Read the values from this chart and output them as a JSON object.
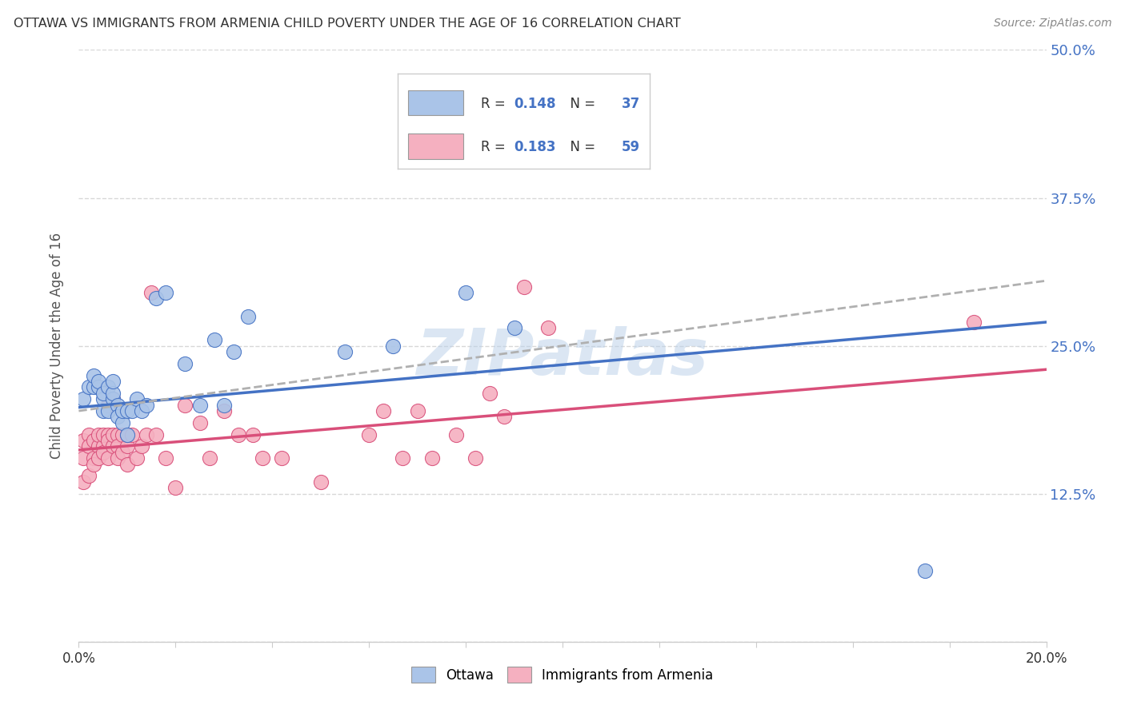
{
  "title": "OTTAWA VS IMMIGRANTS FROM ARMENIA CHILD POVERTY UNDER THE AGE OF 16 CORRELATION CHART",
  "source": "Source: ZipAtlas.com",
  "ylabel": "Child Poverty Under the Age of 16",
  "xlim": [
    0.0,
    0.2
  ],
  "ylim": [
    0.0,
    0.5
  ],
  "ottawa_R": "0.148",
  "ottawa_N": "37",
  "armenia_R": "0.183",
  "armenia_N": "59",
  "ottawa_color": "#aac4e8",
  "armenia_color": "#f5b0c0",
  "ottawa_line_color": "#4472c4",
  "armenia_line_color": "#d94f7a",
  "trendline_color": "#b0b0b0",
  "watermark": "ZIPatlas",
  "background_color": "#ffffff",
  "grid_color": "#d8d8d8",
  "ottawa_scatter_x": [
    0.001,
    0.002,
    0.003,
    0.003,
    0.004,
    0.004,
    0.005,
    0.005,
    0.005,
    0.006,
    0.006,
    0.007,
    0.007,
    0.007,
    0.008,
    0.008,
    0.009,
    0.009,
    0.01,
    0.01,
    0.011,
    0.012,
    0.013,
    0.014,
    0.016,
    0.018,
    0.022,
    0.025,
    0.028,
    0.03,
    0.032,
    0.035,
    0.055,
    0.065,
    0.08,
    0.09,
    0.175
  ],
  "ottawa_scatter_y": [
    0.205,
    0.215,
    0.215,
    0.225,
    0.215,
    0.22,
    0.205,
    0.195,
    0.21,
    0.215,
    0.195,
    0.205,
    0.21,
    0.22,
    0.2,
    0.19,
    0.185,
    0.195,
    0.175,
    0.195,
    0.195,
    0.205,
    0.195,
    0.2,
    0.29,
    0.295,
    0.235,
    0.2,
    0.255,
    0.2,
    0.245,
    0.275,
    0.245,
    0.25,
    0.295,
    0.265,
    0.06
  ],
  "armenia_scatter_x": [
    0.001,
    0.001,
    0.001,
    0.002,
    0.002,
    0.002,
    0.003,
    0.003,
    0.003,
    0.004,
    0.004,
    0.004,
    0.005,
    0.005,
    0.005,
    0.006,
    0.006,
    0.006,
    0.006,
    0.007,
    0.007,
    0.007,
    0.008,
    0.008,
    0.008,
    0.009,
    0.009,
    0.01,
    0.01,
    0.01,
    0.011,
    0.012,
    0.013,
    0.014,
    0.015,
    0.016,
    0.018,
    0.02,
    0.022,
    0.025,
    0.027,
    0.03,
    0.033,
    0.036,
    0.038,
    0.042,
    0.05,
    0.06,
    0.063,
    0.067,
    0.07,
    0.073,
    0.078,
    0.082,
    0.085,
    0.088,
    0.092,
    0.097,
    0.185
  ],
  "armenia_scatter_y": [
    0.17,
    0.155,
    0.135,
    0.175,
    0.165,
    0.14,
    0.155,
    0.17,
    0.15,
    0.165,
    0.175,
    0.155,
    0.165,
    0.175,
    0.16,
    0.175,
    0.2,
    0.155,
    0.17,
    0.165,
    0.175,
    0.205,
    0.175,
    0.165,
    0.155,
    0.175,
    0.16,
    0.15,
    0.165,
    0.175,
    0.175,
    0.155,
    0.165,
    0.175,
    0.295,
    0.175,
    0.155,
    0.13,
    0.2,
    0.185,
    0.155,
    0.195,
    0.175,
    0.175,
    0.155,
    0.155,
    0.135,
    0.175,
    0.195,
    0.155,
    0.195,
    0.155,
    0.175,
    0.155,
    0.21,
    0.19,
    0.3,
    0.265,
    0.27
  ],
  "ottawa_trendline_x0": 0.0,
  "ottawa_trendline_y0": 0.198,
  "ottawa_trendline_x1": 0.2,
  "ottawa_trendline_y1": 0.27,
  "armenia_trendline_x0": 0.0,
  "armenia_trendline_y0": 0.162,
  "armenia_trendline_x1": 0.2,
  "armenia_trendline_y1": 0.23,
  "dash_trendline_x0": 0.0,
  "dash_trendline_y0": 0.195,
  "dash_trendline_x1": 0.2,
  "dash_trendline_y1": 0.305
}
